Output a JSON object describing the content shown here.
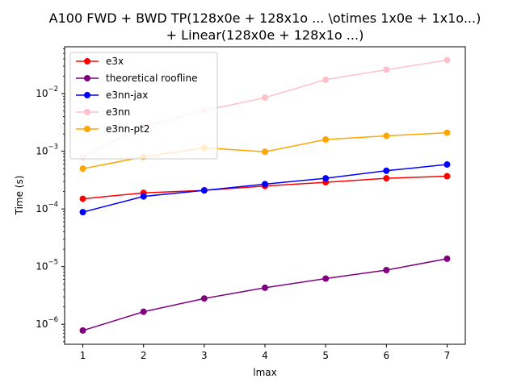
{
  "chart_data": {
    "type": "line",
    "title": [
      "A100 FWD + BWD TP(128x0e + 128x1o ... \\otimes 1x0e + 1x1o...)",
      "+ Linear(128x0e + 128x1o ...)"
    ],
    "xlabel": "lmax",
    "ylabel": "Time (s)",
    "x": [
      1,
      2,
      3,
      4,
      5,
      6,
      7
    ],
    "xlim": [
      0.7,
      7.3
    ],
    "ylim": [
      4.5e-07,
      0.065
    ],
    "yscale": "log",
    "x_ticks": [
      "1",
      "2",
      "3",
      "4",
      "5",
      "6",
      "7"
    ],
    "y_ticks": [
      {
        "value": 1e-06,
        "base": "10",
        "exp": "−6"
      },
      {
        "value": 1e-05,
        "base": "10",
        "exp": "−5"
      },
      {
        "value": 0.0001,
        "base": "10",
        "exp": "−4"
      },
      {
        "value": 0.001,
        "base": "10",
        "exp": "−3"
      },
      {
        "value": 0.01,
        "base": "10",
        "exp": "−2"
      }
    ],
    "grid": false,
    "legend_position": "top-left",
    "series": [
      {
        "name": "e3x",
        "color": "#ff0000",
        "values": [
          0.00015,
          0.00019,
          0.00021,
          0.00025,
          0.00029,
          0.00034,
          0.00037
        ]
      },
      {
        "name": "theoretical roofline",
        "color": "#800080",
        "values": [
          7.8e-07,
          1.65e-06,
          2.8e-06,
          4.3e-06,
          6.2e-06,
          8.7e-06,
          1.37e-05
        ]
      },
      {
        "name": "e3nn-jax",
        "color": "#0000ff",
        "values": [
          8.8e-05,
          0.000165,
          0.00021,
          0.00027,
          0.00034,
          0.00046,
          0.00059
        ]
      },
      {
        "name": "e3nn",
        "color": "#ffc0cb",
        "values": [
          0.0008,
          0.0027,
          0.0051,
          0.0085,
          0.0175,
          0.026,
          0.038
        ]
      },
      {
        "name": "e3nn-pt2",
        "color": "#ffa500",
        "values": [
          0.0005,
          0.0008,
          0.00115,
          0.00098,
          0.0016,
          0.00185,
          0.0021
        ]
      }
    ]
  }
}
